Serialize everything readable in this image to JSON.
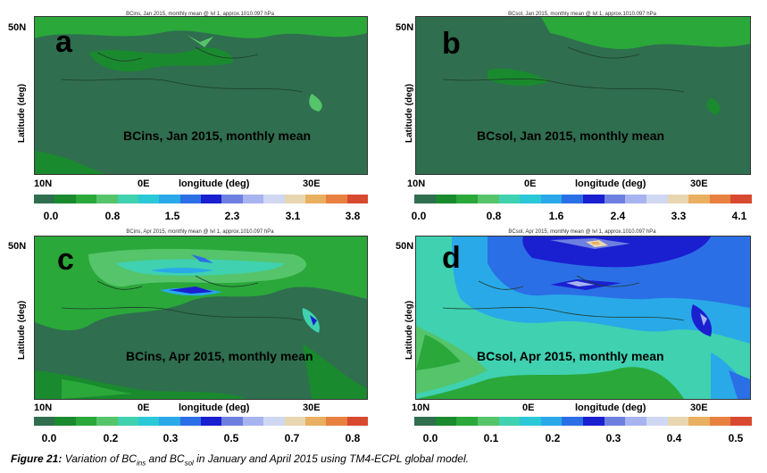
{
  "colorbar_colors": [
    "#2f6e4f",
    "#1a8a2e",
    "#2aa83a",
    "#55c46a",
    "#3fd1b0",
    "#2bc8d8",
    "#29a9e8",
    "#2b6fe6",
    "#1a1fd0",
    "#6f7fe0",
    "#a8b4f0",
    "#cfd8f2",
    "#e8d6b0",
    "#e8b060",
    "#e88040",
    "#d84a30"
  ],
  "panels": [
    {
      "id": "a",
      "letter": "a",
      "header": "BCins, Jan 2015, monthly mean @ lvl 1, approx.1010.097 hPa",
      "caption": "BCins, Jan 2015, monthly mean",
      "lat_top": "50N",
      "ylabel": "Latitude (deg)",
      "xticks": [
        "10N",
        "0E",
        "30E"
      ],
      "xlabel": "longitude (deg)",
      "cbar_ticks": [
        "0.0",
        "0.8",
        "1.5",
        "2.3",
        "3.1",
        "3.8"
      ],
      "base_color": "#2f6e4f"
    },
    {
      "id": "b",
      "letter": "b",
      "header": "BCsol, Jan 2015, monthly mean @ lvl 1, approx.1010.097 hPa",
      "caption": "BCsol, Jan 2015, monthly mean",
      "lat_top": "50N",
      "ylabel": "Latitude (deg)",
      "xticks": [
        "10N",
        "0E",
        "30E"
      ],
      "xlabel": "longitude (deg)",
      "cbar_ticks": [
        "0.0",
        "0.8",
        "1.6",
        "2.4",
        "3.3",
        "4.1"
      ],
      "base_color": "#2f6e4f"
    },
    {
      "id": "c",
      "letter": "c",
      "header": "BCins, Apr 2015, monthly mean @ lvl 1, approx.1010.097 hPa",
      "caption": "BCins, Apr 2015, monthly mean",
      "lat_top": "50N",
      "ylabel": "Latitude (deg)",
      "xticks": [
        "10N",
        "0E",
        "30E"
      ],
      "xlabel": "longitude (deg)",
      "cbar_ticks": [
        "0.0",
        "0.2",
        "0.3",
        "0.5",
        "0.7",
        "0.8"
      ],
      "base_color": "#2f6e4f"
    },
    {
      "id": "d",
      "letter": "d",
      "header": "BCsol, Apr 2015, monthly mean @ lvl 1, approx.1010.097 hPa",
      "caption": "BCsol, Apr 2015, monthly mean",
      "lat_top": "50N",
      "ylabel": "Latitude (deg)",
      "xticks": [
        "10N",
        "0E",
        "30E"
      ],
      "xlabel": "longitude (deg)",
      "cbar_ticks": [
        "0.0",
        "0.1",
        "0.2",
        "0.3",
        "0.4",
        "0.5"
      ],
      "base_color": "#2aa83a"
    }
  ],
  "figure_caption": {
    "label": "Figure 21:",
    "t1": " Variation of BC",
    "s1": "ins",
    "t2": " and BC",
    "s2": "sol",
    "t3": " in January and April 2015 using TM4-ECPL global model."
  }
}
